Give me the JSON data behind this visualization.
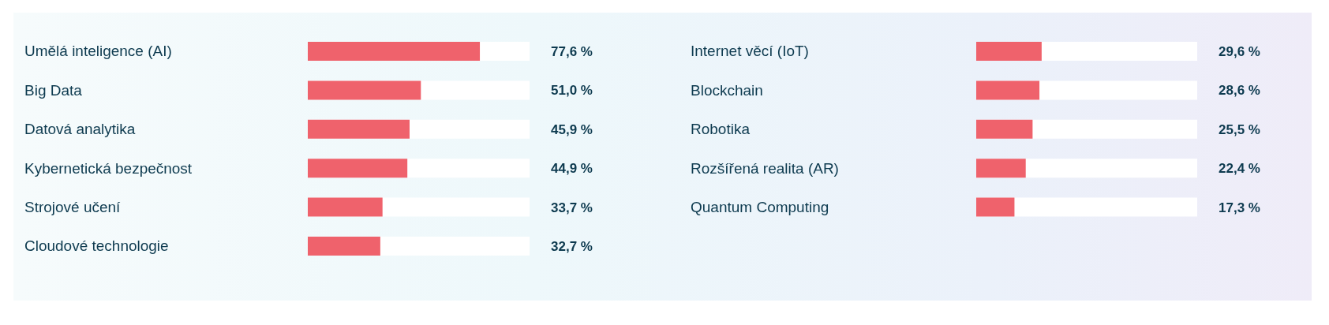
{
  "chart_data": [
    {
      "type": "bar",
      "orientation": "horizontal",
      "categories": [
        "Umělá inteligence (AI)",
        "Big Data",
        "Datová analytika",
        "Kybernetická bezpečnost",
        "Strojové učení",
        "Cloudové technologie"
      ],
      "values": [
        77.6,
        51.0,
        45.9,
        44.9,
        33.7,
        32.7
      ],
      "value_labels": [
        "77,6 %",
        "51,0 %",
        "45,9 %",
        "44,9 %",
        "33,7 %",
        "32,7 %"
      ],
      "color": "#ef626c",
      "xlim": [
        0,
        100
      ],
      "tick_labels": "y",
      "grid": false,
      "legend": false
    },
    {
      "type": "bar",
      "orientation": "horizontal",
      "categories": [
        "Internet věcí (IoT)",
        "Blockchain",
        "Robotika",
        "Rozšířená realita (AR)",
        "Quantum Computing"
      ],
      "values": [
        29.6,
        28.6,
        25.5,
        22.4,
        17.3
      ],
      "value_labels": [
        "29,6 %",
        "28,6 %",
        "25,5 %",
        "22,4 %",
        "17,3 %"
      ],
      "color": "#ef626c",
      "xlim": [
        0,
        100
      ],
      "tick_labels": "y",
      "grid": false,
      "legend": false
    }
  ]
}
